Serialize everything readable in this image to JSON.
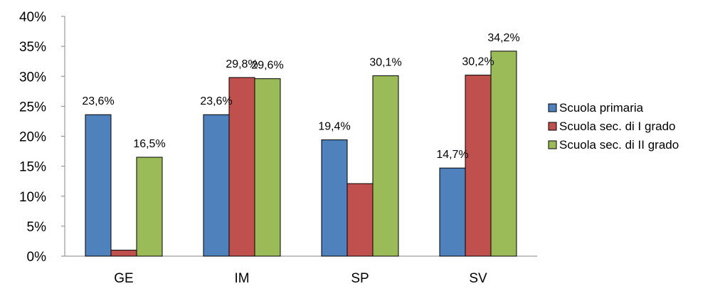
{
  "chart_data": {
    "type": "bar",
    "title": "",
    "xlabel": "",
    "ylabel": "",
    "categories": [
      "GE",
      "IM",
      "SP",
      "SV"
    ],
    "ylim": [
      0,
      40
    ],
    "yticks": [
      "0%",
      "5%",
      "10%",
      "15%",
      "20%",
      "25%",
      "30%",
      "35%",
      "40%"
    ],
    "grid": false,
    "legend_position": "right",
    "series": [
      {
        "name": "Scuola primaria",
        "color": "#4f81bd",
        "values": [
          23.6,
          23.6,
          19.4,
          14.7
        ],
        "labels": [
          "23,6%",
          "23,6%",
          "19,4%",
          "14,7%"
        ]
      },
      {
        "name": "Scuola sec. di I grado",
        "color": "#c0504d",
        "values": [
          1.0,
          29.8,
          12.1,
          30.2
        ],
        "labels": [
          "",
          "29,8%",
          "",
          "30,2%"
        ]
      },
      {
        "name": "Scuola sec. di II grado",
        "color": "#9bbb59",
        "values": [
          16.5,
          29.6,
          30.1,
          34.2
        ],
        "labels": [
          "16,5%",
          "29,6%",
          "30,1%",
          "34,2%"
        ]
      }
    ]
  }
}
